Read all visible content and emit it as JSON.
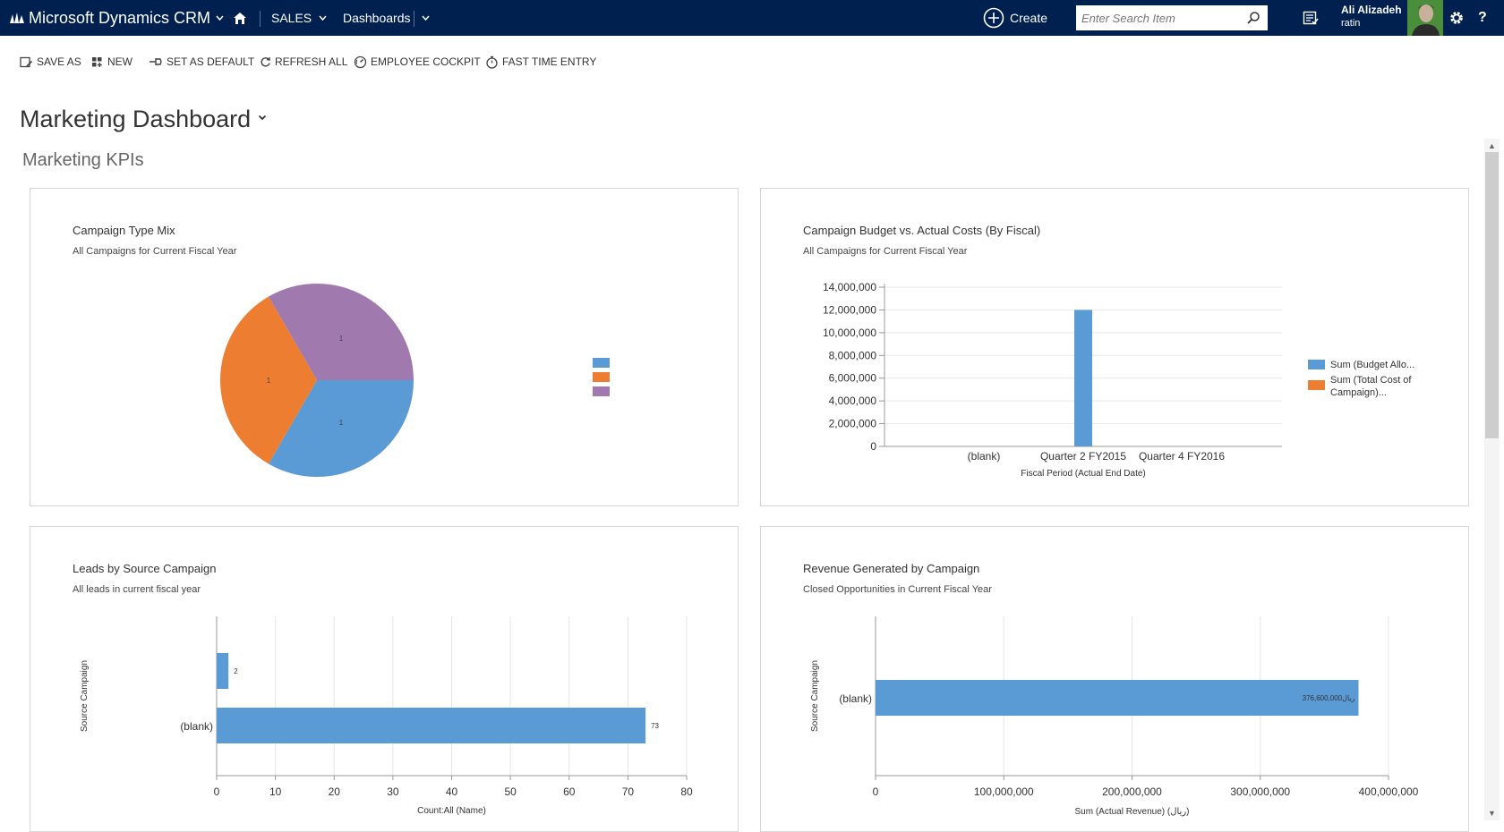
{
  "app": {
    "title": "Microsoft Dynamics CRM",
    "area": "SALES",
    "subarea": "Dashboards",
    "create_label": "Create",
    "search_placeholder": "Enter Search Item",
    "user_name": "Ali Alizadeh",
    "user_org": "ratin"
  },
  "commands": [
    {
      "label": "SAVE AS",
      "icon": "save-as-icon"
    },
    {
      "label": "NEW",
      "icon": "new-icon"
    },
    {
      "label": "SET AS DEFAULT",
      "icon": "pin-icon"
    },
    {
      "label": "REFRESH ALL",
      "icon": "refresh-icon"
    },
    {
      "label": "EMPLOYEE COCKPIT",
      "icon": "gauge-icon"
    },
    {
      "label": "FAST TIME ENTRY",
      "icon": "stopwatch-icon"
    }
  ],
  "dashboard": {
    "title": "Marketing Dashboard",
    "section": "Marketing KPIs"
  },
  "colors": {
    "header_bg": "#002050",
    "blue": "#5b9bd5",
    "orange": "#ed7d31",
    "purple": "#a07aae"
  },
  "chart_data": [
    {
      "type": "pie",
      "title": "Campaign Type Mix",
      "subtitle": "All Campaigns for Current Fiscal Year",
      "slices": [
        {
          "label": "1",
          "value": 1,
          "color": "#5b9bd5"
        },
        {
          "label": "1",
          "value": 1,
          "color": "#ed7d31"
        },
        {
          "label": "1",
          "value": 1,
          "color": "#a07aae"
        }
      ],
      "legend": "right"
    },
    {
      "type": "bar",
      "title": "Campaign Budget vs. Actual Costs (By Fiscal)",
      "subtitle": "All Campaigns for Current Fiscal Year",
      "categories": [
        "(blank)",
        "Quarter 2 FY2015",
        "Quarter 4 FY2016"
      ],
      "series": [
        {
          "name": "Sum (Budget Allo...",
          "color": "#5b9bd5",
          "values": [
            0,
            12000000,
            0
          ]
        },
        {
          "name": "Sum (Total Cost of Campaign)...",
          "color": "#ed7d31",
          "values": [
            0,
            0,
            0
          ]
        }
      ],
      "ylim": [
        0,
        14000000
      ],
      "yticks": [
        "14,000,000",
        "12,000,000",
        "10,000,000",
        "8,000,000",
        "6,000,000",
        "4,000,000",
        "2,000,000",
        "0"
      ],
      "xlabel": "Fiscal Period (Actual End Date)",
      "legend": "right"
    },
    {
      "type": "bar",
      "orientation": "horizontal",
      "title": "Leads by Source Campaign",
      "subtitle": "All leads in current fiscal year",
      "categories": [
        "",
        "(blank)"
      ],
      "values": [
        2,
        73
      ],
      "xlim": [
        0,
        80
      ],
      "xticks": [
        "0",
        "10",
        "20",
        "30",
        "40",
        "50",
        "60",
        "70",
        "80"
      ],
      "xlabel": "Count:All (Name)",
      "ylabel": "Source Campaign"
    },
    {
      "type": "bar",
      "orientation": "horizontal",
      "title": "Revenue Generated by Campaign",
      "subtitle": "Closed Opportunities in Current Fiscal Year",
      "categories": [
        "(blank)"
      ],
      "values": [
        376600000
      ],
      "value_labels": [
        "ریال376,600,000"
      ],
      "xlim": [
        0,
        400000000
      ],
      "xticks": [
        "0",
        "100,000,000",
        "200,000,000",
        "300,000,000",
        "400,000,000"
      ],
      "xlabel": "Sum (Actual Revenue) (ریال)",
      "ylabel": "Source Campaign"
    }
  ]
}
